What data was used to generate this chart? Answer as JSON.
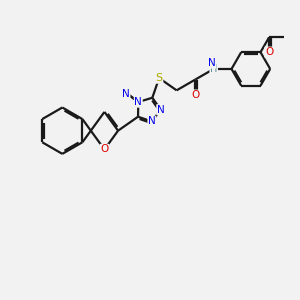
{
  "bg": "#f2f2f2",
  "bond_color": "#1a1a1a",
  "bond_lw": 1.6,
  "dbo": 0.055,
  "atom_colors": {
    "N": "#0000ee",
    "O": "#dd0000",
    "S": "#aaaa00",
    "H": "#5a8a8a",
    "C": "#1a1a1a"
  },
  "figsize": [
    3.0,
    3.0
  ],
  "dpi": 100
}
